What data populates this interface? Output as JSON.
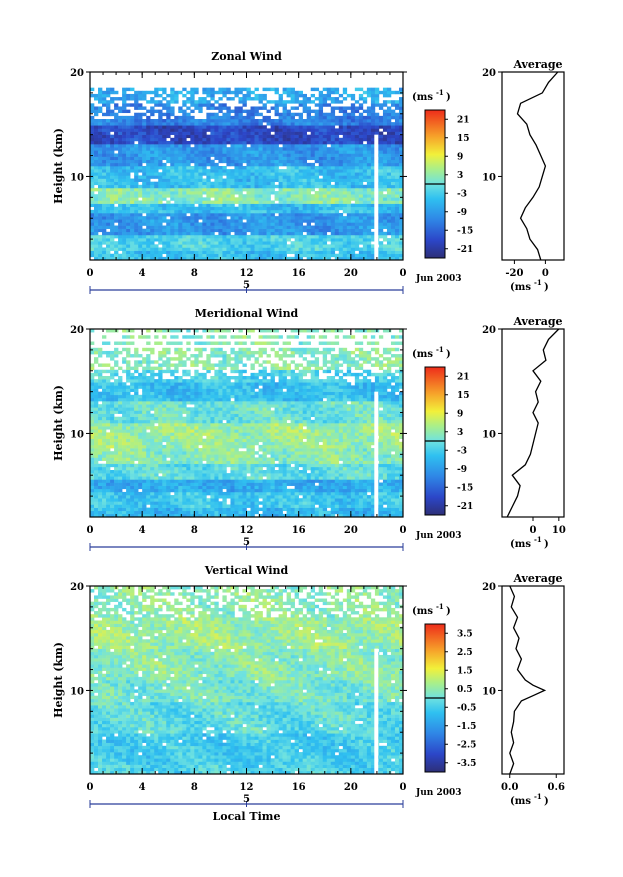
{
  "chart_data": [
    {
      "type": "heatmap",
      "title": "Zonal Wind",
      "xlabel": "",
      "ylabel": "Height (km)",
      "x_ticks": [
        "0",
        "4",
        "8",
        "12",
        "16",
        "20",
        "0"
      ],
      "y_ticks": [
        "20",
        "10"
      ],
      "xlim": [
        0,
        24
      ],
      "ylim": [
        2,
        20
      ],
      "day_label": "5",
      "date_label": "Jun 2003",
      "colorbar": {
        "unit": "(ms",
        "unit_exp": "-1",
        "unit_close": ")",
        "ticks": [
          "21",
          "15",
          "9",
          "3",
          "-3",
          "-9",
          "-15",
          "-21"
        ],
        "range": [
          -24,
          24
        ]
      },
      "profile": {
        "title": "Average",
        "x_ticks": [
          "-20",
          "0"
        ],
        "xlim": [
          -28,
          12
        ],
        "y_ticks": [
          "20",
          "10"
        ],
        "unit": "(ms",
        "unit_exp": "-1",
        "unit_close": ")",
        "heights": [
          2,
          3,
          4,
          5,
          6,
          7,
          8,
          9,
          10,
          11,
          12,
          13,
          14,
          15,
          16,
          17,
          18,
          19,
          20
        ],
        "values": [
          -3,
          -5,
          -10,
          -12,
          -16,
          -13,
          -8,
          -4,
          -2,
          0,
          -3,
          -6,
          -10,
          -12,
          -18,
          -16,
          -2,
          2,
          8
        ]
      }
    },
    {
      "type": "heatmap",
      "title": "Meridional Wind",
      "xlabel": "",
      "ylabel": "Height (km)",
      "x_ticks": [
        "0",
        "4",
        "8",
        "12",
        "16",
        "20",
        "0"
      ],
      "y_ticks": [
        "20",
        "10"
      ],
      "xlim": [
        0,
        24
      ],
      "ylim": [
        2,
        20
      ],
      "day_label": "5",
      "date_label": "Jun 2003",
      "colorbar": {
        "unit": "(ms",
        "unit_exp": "-1",
        "unit_close": ")",
        "ticks": [
          "21",
          "15",
          "9",
          "3",
          "-3",
          "-9",
          "-15",
          "-21"
        ],
        "range": [
          -24,
          24
        ]
      },
      "profile": {
        "title": "Average",
        "x_ticks": [
          "0",
          "10"
        ],
        "xlim": [
          -12,
          12
        ],
        "y_ticks": [
          "20",
          "10"
        ],
        "unit": "(ms",
        "unit_exp": "-1",
        "unit_close": ")",
        "heights": [
          2,
          3,
          4,
          5,
          6,
          7,
          8,
          9,
          10,
          11,
          12,
          13,
          14,
          15,
          16,
          17,
          18,
          19,
          20
        ],
        "values": [
          -10,
          -8,
          -6,
          -5,
          -8,
          -3,
          -1,
          0,
          1,
          2,
          0,
          2,
          1,
          3,
          0,
          5,
          4,
          6,
          10
        ]
      }
    },
    {
      "type": "heatmap",
      "title": "Vertical Wind",
      "xlabel": "Local Time",
      "ylabel": "Height (km)",
      "x_ticks": [
        "0",
        "4",
        "8",
        "12",
        "16",
        "20",
        "0"
      ],
      "y_ticks": [
        "20",
        "10"
      ],
      "xlim": [
        0,
        24
      ],
      "ylim": [
        2,
        20
      ],
      "day_label": "5",
      "date_label": "Jun 2003",
      "colorbar": {
        "unit": "(ms",
        "unit_exp": "-1",
        "unit_close": ")",
        "ticks": [
          "3.5",
          "2.5",
          "1.5",
          "0.5",
          "-0.5",
          "-1.5",
          "-2.5",
          "-3.5"
        ],
        "range": [
          -4,
          4
        ]
      },
      "profile": {
        "title": "Average",
        "x_ticks": [
          "0.0",
          "0.6"
        ],
        "xlim": [
          -0.1,
          0.7
        ],
        "y_ticks": [
          "20",
          "10"
        ],
        "unit": "(ms",
        "unit_exp": "-1",
        "unit_close": ")",
        "heights": [
          2,
          3,
          4,
          5,
          6,
          7,
          8,
          9,
          9.5,
          10,
          10.5,
          11,
          12,
          13,
          14,
          15,
          16,
          17,
          18,
          19,
          20
        ],
        "values": [
          0.0,
          0.05,
          0.0,
          0.05,
          0.02,
          0.05,
          0.06,
          0.15,
          0.3,
          0.45,
          0.3,
          0.2,
          0.1,
          0.15,
          0.08,
          0.12,
          0.05,
          0.1,
          0.02,
          0.06,
          0.0
        ]
      }
    }
  ]
}
